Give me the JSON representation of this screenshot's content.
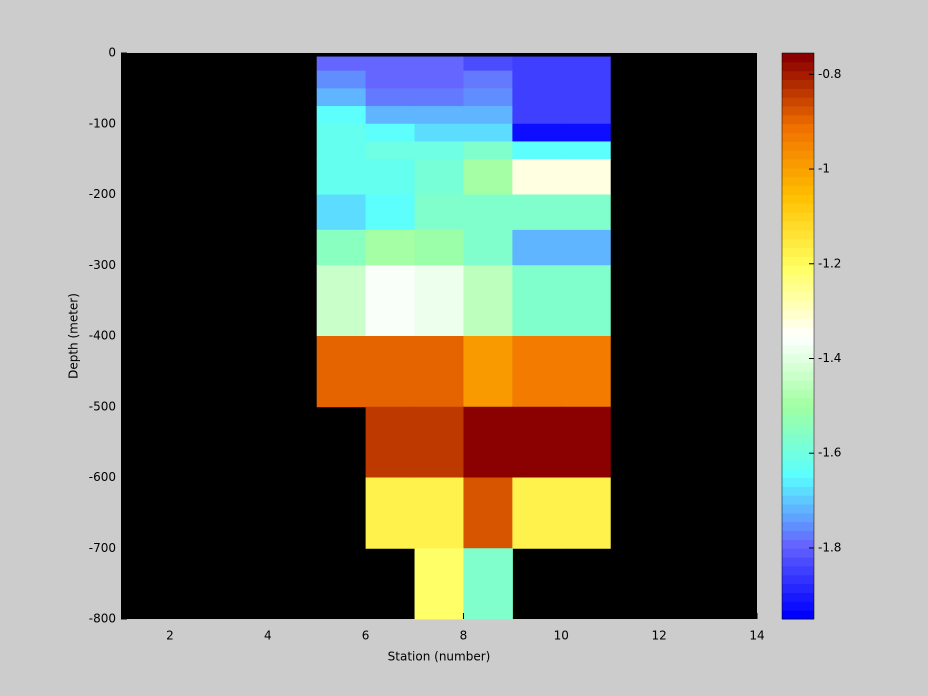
{
  "chart_data": {
    "type": "heatmap",
    "xlabel": "Station (number)",
    "ylabel": "Depth (meter)",
    "xlim": [
      1,
      14
    ],
    "xticks": [
      2,
      4,
      6,
      8,
      10,
      12,
      14
    ],
    "ylim": [
      -800,
      0
    ],
    "yticks": [
      0,
      -100,
      -200,
      -300,
      -400,
      -500,
      -600,
      -700,
      -800
    ],
    "background": "#000000",
    "x": [
      5,
      6,
      7,
      8,
      9,
      10,
      11
    ],
    "y": [
      -5,
      -25,
      -50,
      -75,
      -100,
      -125,
      -150,
      -200,
      -250,
      -300,
      -400,
      -500,
      -600,
      -700,
      -800
    ],
    "z": [
      [
        -1.8,
        -1.8,
        -1.8,
        -1.82,
        -1.85,
        -1.85
      ],
      [
        -1.75,
        -1.8,
        -1.8,
        -1.78,
        -1.85,
        -1.85
      ],
      [
        -1.72,
        -1.78,
        -1.78,
        -1.75,
        -1.85,
        -1.85
      ],
      [
        -1.65,
        -1.72,
        -1.72,
        -1.72,
        -1.85,
        -1.85
      ],
      [
        -1.63,
        -1.65,
        -1.67,
        -1.68,
        -1.92,
        -1.92
      ],
      [
        -1.62,
        -1.6,
        -1.6,
        -1.56,
        -1.65,
        -1.65
      ],
      [
        -1.62,
        -1.62,
        -1.58,
        -1.5,
        -1.32,
        -1.32
      ],
      [
        -1.67,
        -1.64,
        -1.56,
        -1.56,
        -1.57,
        -1.57
      ],
      [
        -1.55,
        -1.5,
        -1.52,
        -1.57,
        -1.72,
        -1.72
      ],
      [
        -1.43,
        -1.37,
        -1.38,
        -1.45,
        -1.57,
        -1.57
      ],
      [
        -0.9,
        -0.9,
        -0.9,
        -0.98,
        -0.93,
        -0.93
      ],
      [
        null,
        -0.83,
        -0.83,
        -0.76,
        -0.76,
        -0.76
      ],
      [
        null,
        -1.18,
        -1.18,
        -0.88,
        -1.18,
        -1.18
      ],
      [
        null,
        null,
        -1.22,
        -1.57,
        null,
        null
      ]
    ],
    "clim": [
      -1.95,
      -0.755
    ],
    "cticks": [
      -0.8,
      -1,
      -1.2,
      -1.4,
      -1.6,
      -1.8
    ],
    "colormap": [
      "#0000ff",
      "#6464ff",
      "#5affff",
      "#a0ffa0",
      "#ffffff",
      "#ffff60",
      "#ffc000",
      "#f07000",
      "#8b0000"
    ],
    "colormap_levels": 64
  }
}
